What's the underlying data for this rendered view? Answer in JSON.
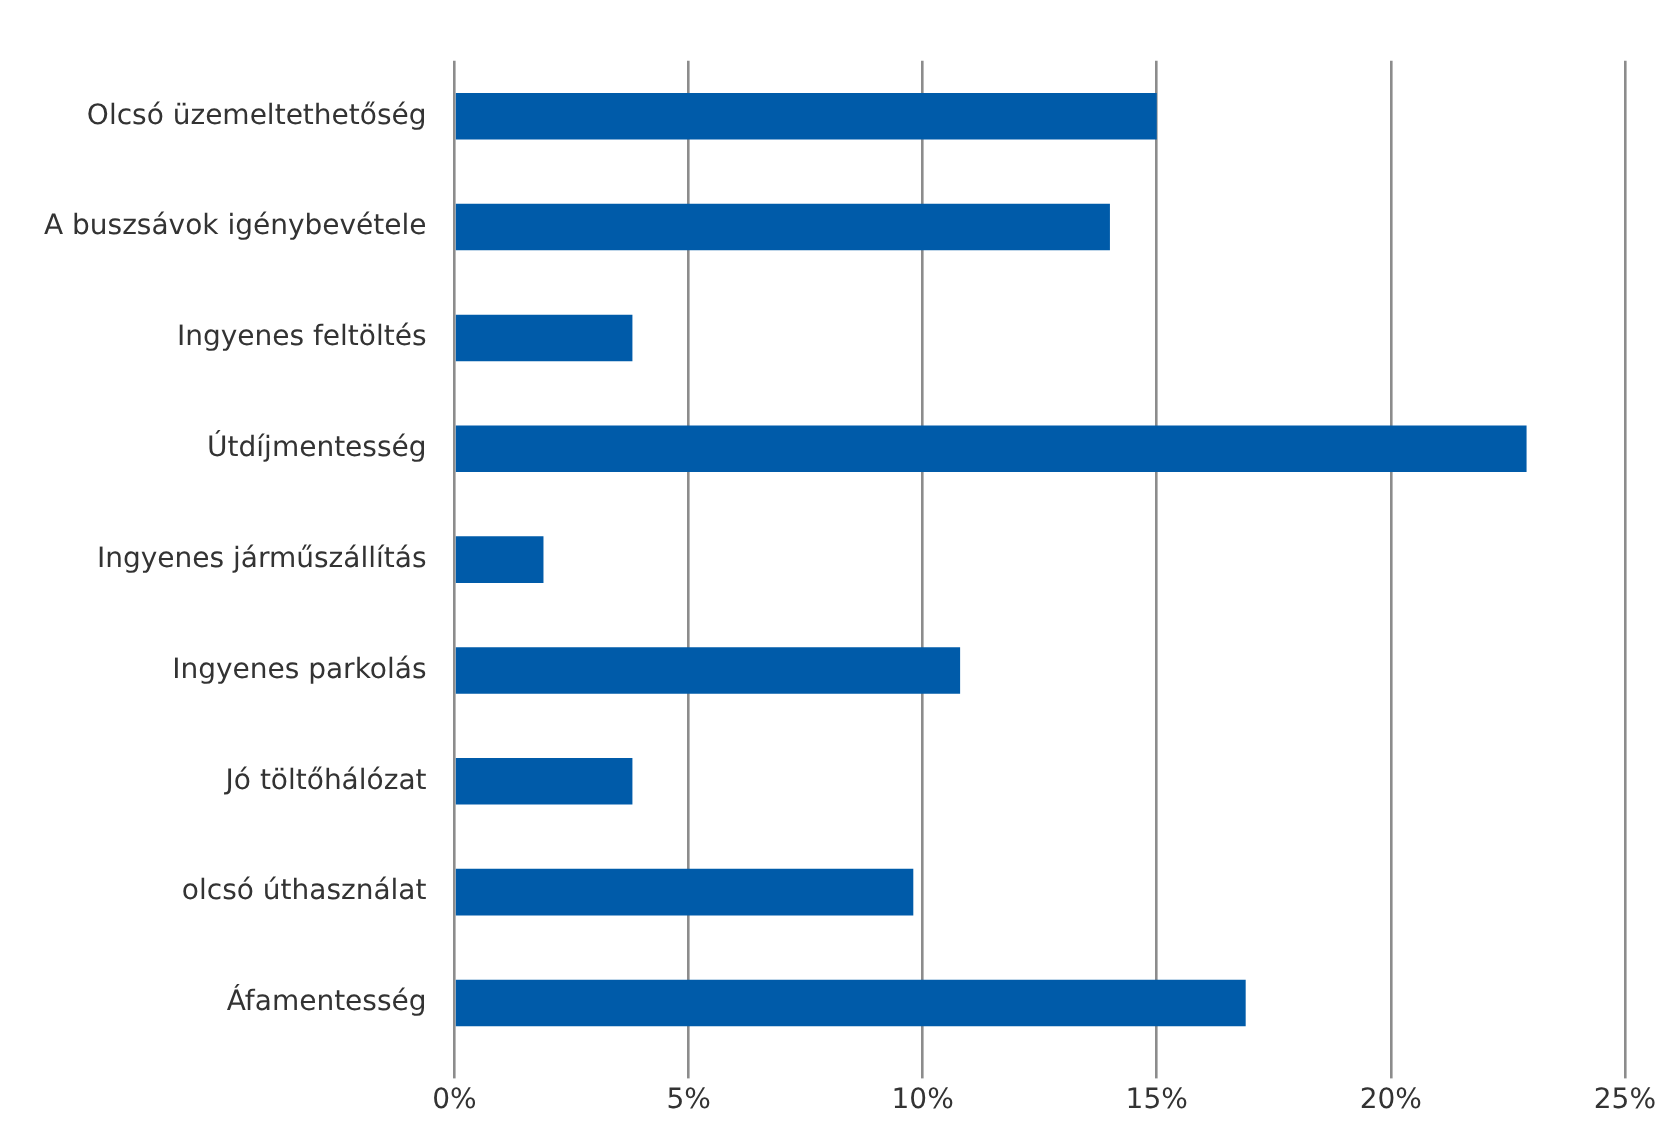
{
  "chart_data": {
    "type": "bar",
    "orientation": "horizontal",
    "categories": [
      "Olcsó üzemeltethetőség",
      "A buszsávok igénybevétele",
      "Ingyenes feltöltés",
      "Útdíjmentesség",
      "Ingyenes járműszállítás",
      "Ingyenes parkolás",
      "Jó töltőhálózat",
      "olcsó úthasználat",
      "Áfamentesség"
    ],
    "values": [
      15,
      14,
      3.8,
      22.9,
      1.9,
      10.8,
      3.8,
      9.8,
      16.9
    ],
    "color": "#005ba9",
    "xlim": [
      0,
      25
    ],
    "xticks": [
      {
        "value": 0,
        "label": "0%"
      },
      {
        "value": 5,
        "label": "5%"
      },
      {
        "value": 10,
        "label": "10%"
      },
      {
        "value": 15,
        "label": "15%"
      },
      {
        "value": 20,
        "label": "20%"
      },
      {
        "value": 25,
        "label": "25%"
      }
    ],
    "grid": "x",
    "legend": false
  }
}
